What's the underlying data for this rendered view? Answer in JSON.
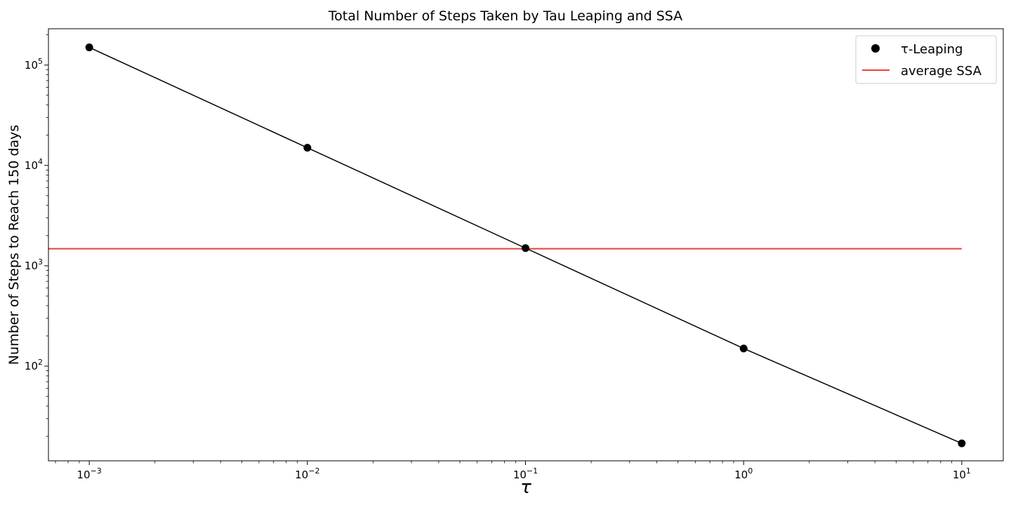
{
  "chart_data": {
    "type": "line",
    "title": "Total Number of Steps Taken by Tau Leaping and SSA",
    "xlabel": "τ",
    "ylabel": "Number of Steps to Reach 150 days",
    "x_scale": "log",
    "y_scale": "log",
    "xlim": [
      0.00065,
      15.5
    ],
    "ylim": [
      11.4,
      230000
    ],
    "x_ticks": [
      {
        "value": 0.001,
        "base": "10",
        "exp": "−3"
      },
      {
        "value": 0.01,
        "base": "10",
        "exp": "−2"
      },
      {
        "value": 0.1,
        "base": "10",
        "exp": "−1"
      },
      {
        "value": 1,
        "base": "10",
        "exp": "0"
      },
      {
        "value": 10,
        "base": "10",
        "exp": "1"
      }
    ],
    "y_ticks": [
      {
        "value": 100,
        "base": "10",
        "exp": "2"
      },
      {
        "value": 1000,
        "base": "10",
        "exp": "3"
      },
      {
        "value": 10000,
        "base": "10",
        "exp": "4"
      },
      {
        "value": 100000,
        "base": "10",
        "exp": "5"
      }
    ],
    "grid": false,
    "legend_position": "top-right",
    "series": [
      {
        "name": "τ-Leaping",
        "kind": "line-markers",
        "color": "#000000",
        "x": [
          0.001,
          0.01,
          0.1,
          1,
          10
        ],
        "y": [
          150000,
          15000,
          1500,
          150,
          17
        ]
      },
      {
        "name": "average SSA",
        "kind": "hline",
        "color": "#e8413c",
        "x": [
          0.00065,
          10
        ],
        "y": [
          1480,
          1480
        ]
      }
    ]
  }
}
